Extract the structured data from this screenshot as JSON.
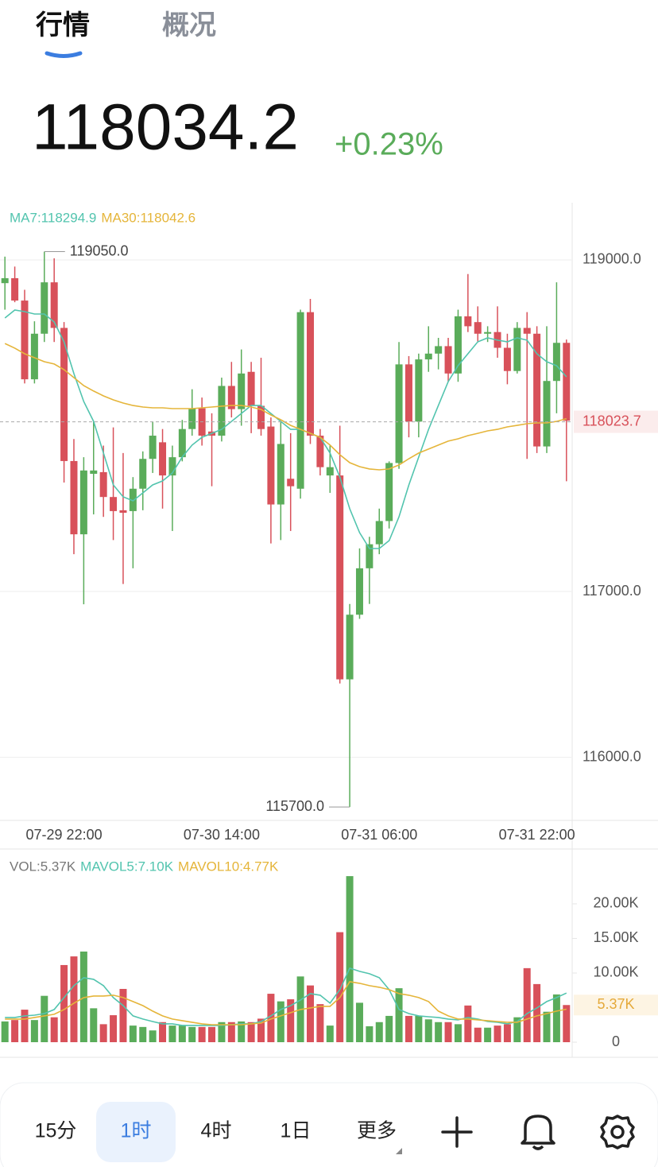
{
  "header": {
    "tabs": [
      "行情",
      "概况"
    ],
    "price": "118034.2",
    "change": "+0.23%"
  },
  "chart_data": [
    {
      "type": "candlestick",
      "up_color": "#5aac5a",
      "down_color": "#d8515a",
      "categories": [
        null,
        null,
        null,
        null,
        null,
        null,
        "07-29 22:00",
        null,
        null,
        null,
        null,
        null,
        null,
        null,
        null,
        null,
        null,
        null,
        null,
        null,
        null,
        null,
        "07-30 14:00",
        null,
        null,
        null,
        null,
        null,
        null,
        null,
        null,
        null,
        null,
        null,
        null,
        null,
        null,
        null,
        "07-31 06:00",
        null,
        null,
        null,
        null,
        null,
        null,
        null,
        null,
        null,
        null,
        null,
        null,
        null,
        null,
        null,
        "07-31 22:00",
        null,
        null,
        null
      ],
      "open": [
        118860,
        118890,
        118755,
        118280,
        118555,
        118865,
        118590,
        117787,
        117345,
        117710,
        117720,
        117570,
        117490,
        117485,
        117620,
        117800,
        117900,
        117700,
        117810,
        117980,
        118105,
        117965,
        117940,
        118240,
        118100,
        118325,
        118120,
        117995,
        117525,
        117680,
        117620,
        118685,
        117940,
        117700,
        117700,
        116470,
        116860,
        117140,
        117285,
        117425,
        117775,
        118370,
        118025,
        118400,
        118435,
        118480,
        118315,
        118660,
        118625,
        118555,
        118565,
        118470,
        118330,
        118590,
        118555,
        117875,
        118270,
        118500
      ],
      "high": [
        119020,
        118960,
        118820,
        118630,
        119050,
        119010,
        118625,
        117920,
        117810,
        118025,
        117880,
        117990,
        117835,
        117690,
        117845,
        118025,
        117980,
        117880,
        118035,
        118220,
        118170,
        118075,
        118290,
        118385,
        118460,
        118385,
        118410,
        118050,
        118025,
        117955,
        118700,
        118765,
        117980,
        117880,
        118000,
        116925,
        117260,
        117330,
        117500,
        117785,
        118505,
        118420,
        118435,
        118600,
        118530,
        118530,
        118700,
        118915,
        118720,
        118600,
        118720,
        118555,
        118625,
        118685,
        118600,
        118600,
        118865,
        118520
      ],
      "low": [
        118700,
        118745,
        118255,
        118255,
        118505,
        118505,
        117657,
        117225,
        116923,
        117465,
        117450,
        117310,
        117045,
        117140,
        117490,
        117715,
        117500,
        117365,
        117785,
        117940,
        117880,
        117635,
        117905,
        118050,
        118000,
        117955,
        117940,
        117290,
        117310,
        117365,
        117560,
        117890,
        117700,
        117595,
        116445,
        115700,
        116835,
        116925,
        117225,
        117380,
        117740,
        117930,
        117930,
        118325,
        118340,
        118265,
        118265,
        118565,
        118505,
        118505,
        118410,
        118250,
        118315,
        117800,
        117835,
        117835,
        118075,
        117665
      ],
      "close": [
        118890,
        118755,
        118280,
        118555,
        118865,
        118590,
        117787,
        117345,
        117730,
        117730,
        117570,
        117485,
        117475,
        117620,
        117800,
        117940,
        117700,
        117810,
        117980,
        118105,
        117940,
        117940,
        118240,
        118100,
        118315,
        118120,
        117980,
        117525,
        117890,
        117635,
        118685,
        117940,
        117750,
        117750,
        116470,
        116860,
        117140,
        117285,
        117425,
        117775,
        118370,
        118025,
        118400,
        118435,
        118480,
        118315,
        118660,
        118600,
        118555,
        118565,
        118470,
        118330,
        118590,
        118555,
        117875,
        118270,
        118500,
        118030
      ],
      "series": [
        {
          "name": "MA7:118294.9",
          "color": "#52c4ae",
          "values": [
            118650,
            118698,
            118688,
            118674,
            118674,
            118626,
            118506,
            118314,
            118146,
            118026,
            117835,
            117643,
            117571,
            117547,
            117595,
            117643,
            117667,
            117715,
            117811,
            117883,
            117930,
            117954,
            117978,
            118026,
            118074,
            118122,
            118122,
            118074,
            118026,
            117978,
            117978,
            117954,
            117930,
            117835,
            117690,
            117499,
            117355,
            117259,
            117259,
            117307,
            117451,
            117643,
            117811,
            117978,
            118122,
            118266,
            118362,
            118434,
            118506,
            118530,
            118516,
            118506,
            118530,
            118516,
            118434,
            118386,
            118362,
            118295
          ]
        },
        {
          "name": "MA30:118042.6",
          "color": "#e5b53a",
          "values": [
            118496,
            118468,
            118434,
            118410,
            118386,
            118372,
            118338,
            118290,
            118242,
            118209,
            118180,
            118156,
            118137,
            118122,
            118113,
            118108,
            118108,
            118103,
            118103,
            118103,
            118108,
            118113,
            118118,
            118122,
            118122,
            118113,
            118098,
            118065,
            118036,
            118002,
            117978,
            117954,
            117930,
            117883,
            117825,
            117777,
            117753,
            117739,
            117734,
            117739,
            117763,
            117801,
            117835,
            117859,
            117883,
            117907,
            117921,
            117940,
            117954,
            117969,
            117978,
            117993,
            118002,
            118012,
            118017,
            118017,
            118026,
            118043
          ]
        }
      ],
      "ylim": [
        115600,
        119350
      ],
      "yticks": [
        {
          "value": 116000,
          "label": "116000.0"
        },
        {
          "value": 117000,
          "label": "117000.0"
        },
        {
          "value": 119000,
          "label": "119000.0"
        }
      ],
      "current": {
        "value": 118023.7,
        "label": "118023.7"
      },
      "high_marker": {
        "value": 119050,
        "label": "119050.0"
      },
      "low_marker": {
        "value": 115700,
        "label": "115700.0"
      }
    },
    {
      "type": "volume",
      "label": "VOL:5.37K",
      "values": [
        3000,
        3200,
        4700,
        3200,
        6700,
        3600,
        11150,
        12400,
        13100,
        4900,
        2600,
        3900,
        7700,
        2400,
        2200,
        1700,
        2900,
        2400,
        2400,
        2200,
        2200,
        2200,
        2900,
        2900,
        3000,
        2900,
        3400,
        7000,
        5900,
        6200,
        9500,
        8200,
        5500,
        2400,
        15900,
        24000,
        5700,
        2300,
        2900,
        3800,
        7800,
        3800,
        3800,
        3300,
        2900,
        2900,
        2600,
        5300,
        2100,
        2100,
        2400,
        2600,
        3600,
        10700,
        8400,
        4400,
        6900,
        5370
      ],
      "series": [
        {
          "name": "MAVOL5:7.10K",
          "color": "#52c4ae",
          "values": [
            3570,
            3570,
            3800,
            3910,
            4140,
            4720,
            6440,
            8170,
            9320,
            9090,
            8170,
            6440,
            5290,
            3800,
            3340,
            2990,
            2650,
            2650,
            2420,
            2420,
            2420,
            2420,
            2420,
            2530,
            2650,
            2650,
            2990,
            3800,
            4720,
            5290,
            6100,
            7020,
            6790,
            5640,
            7590,
            10700,
            10240,
            9890,
            9320,
            7590,
            4720,
            4140,
            3800,
            3680,
            3570,
            3340,
            3220,
            3570,
            3340,
            2990,
            2880,
            2650,
            2990,
            4140,
            4950,
            5870,
            6440,
            7100
          ]
        },
        {
          "name": "MAVOL10:4.77K",
          "color": "#e5b53a",
          "values": [
            3340,
            3340,
            3340,
            3570,
            3800,
            4030,
            4720,
            5640,
            6440,
            6670,
            6670,
            6790,
            6440,
            5870,
            5290,
            4490,
            3800,
            3340,
            3110,
            2880,
            2650,
            2530,
            2530,
            2530,
            2530,
            2650,
            2760,
            3340,
            3800,
            4260,
            4720,
            4950,
            5180,
            5180,
            6440,
            8740,
            8510,
            8170,
            7940,
            7590,
            7020,
            6790,
            6440,
            5870,
            4490,
            3800,
            3340,
            3340,
            3220,
            3110,
            2990,
            2880,
            2880,
            3340,
            3800,
            4140,
            4490,
            4770
          ]
        }
      ],
      "ylim": [
        0,
        27000
      ],
      "yticks": [
        0,
        {
          "value": 10000,
          "label": "10.00K"
        },
        {
          "value": 15000,
          "label": "15.00K"
        },
        {
          "value": 20000,
          "label": "20.00K"
        }
      ],
      "current": {
        "value": 5370,
        "label": "5.37K"
      }
    }
  ],
  "toolbar": {
    "intervals": [
      "15分",
      "1时",
      "4时",
      "1日",
      "更多"
    ],
    "active": 1
  }
}
